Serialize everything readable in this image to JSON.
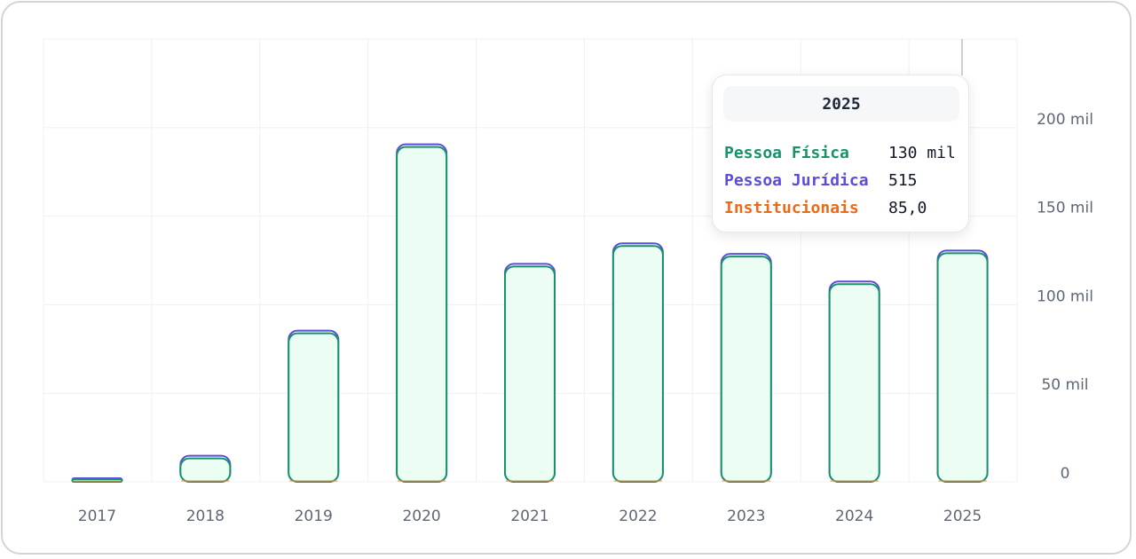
{
  "chart_data": {
    "type": "bar",
    "stacked": true,
    "categories": [
      "2017",
      "2018",
      "2019",
      "2020",
      "2021",
      "2022",
      "2023",
      "2024",
      "2025"
    ],
    "series": [
      {
        "name": "Pessoa Física",
        "color": "#16936a",
        "fill": "#ecfdf4",
        "values": [
          1500,
          13500,
          84000,
          189000,
          122000,
          134000,
          128000,
          113000,
          130000
        ]
      },
      {
        "name": "Pessoa Jurídica",
        "color": "#5b4ddb",
        "values": [
          50,
          1200,
          1300,
          1500,
          1000,
          600,
          600,
          50,
          515
        ]
      },
      {
        "name": "Institucionais",
        "color": "#f08c4a",
        "values": [
          5,
          20,
          30,
          60,
          60,
          70,
          80,
          60,
          85
        ]
      }
    ],
    "yaxis": {
      "position": "right",
      "ylim": [
        0,
        250000
      ],
      "ticks": [
        0,
        50000,
        100000,
        150000,
        200000
      ],
      "tick_labels": [
        "0",
        "50 mil",
        "100 mil",
        "150 mil",
        "200 mil"
      ]
    },
    "grid": true,
    "legend": "none",
    "tooltip": {
      "title": "2025",
      "rows": [
        {
          "label": "Pessoa Física",
          "value": "130 mil",
          "color": "#16936a"
        },
        {
          "label": "Pessoa Jurídica",
          "value": "515",
          "color": "#5b4ddb"
        },
        {
          "label": "Institucionais",
          "value": "85,0",
          "color": "#ea6a17"
        }
      ]
    }
  }
}
